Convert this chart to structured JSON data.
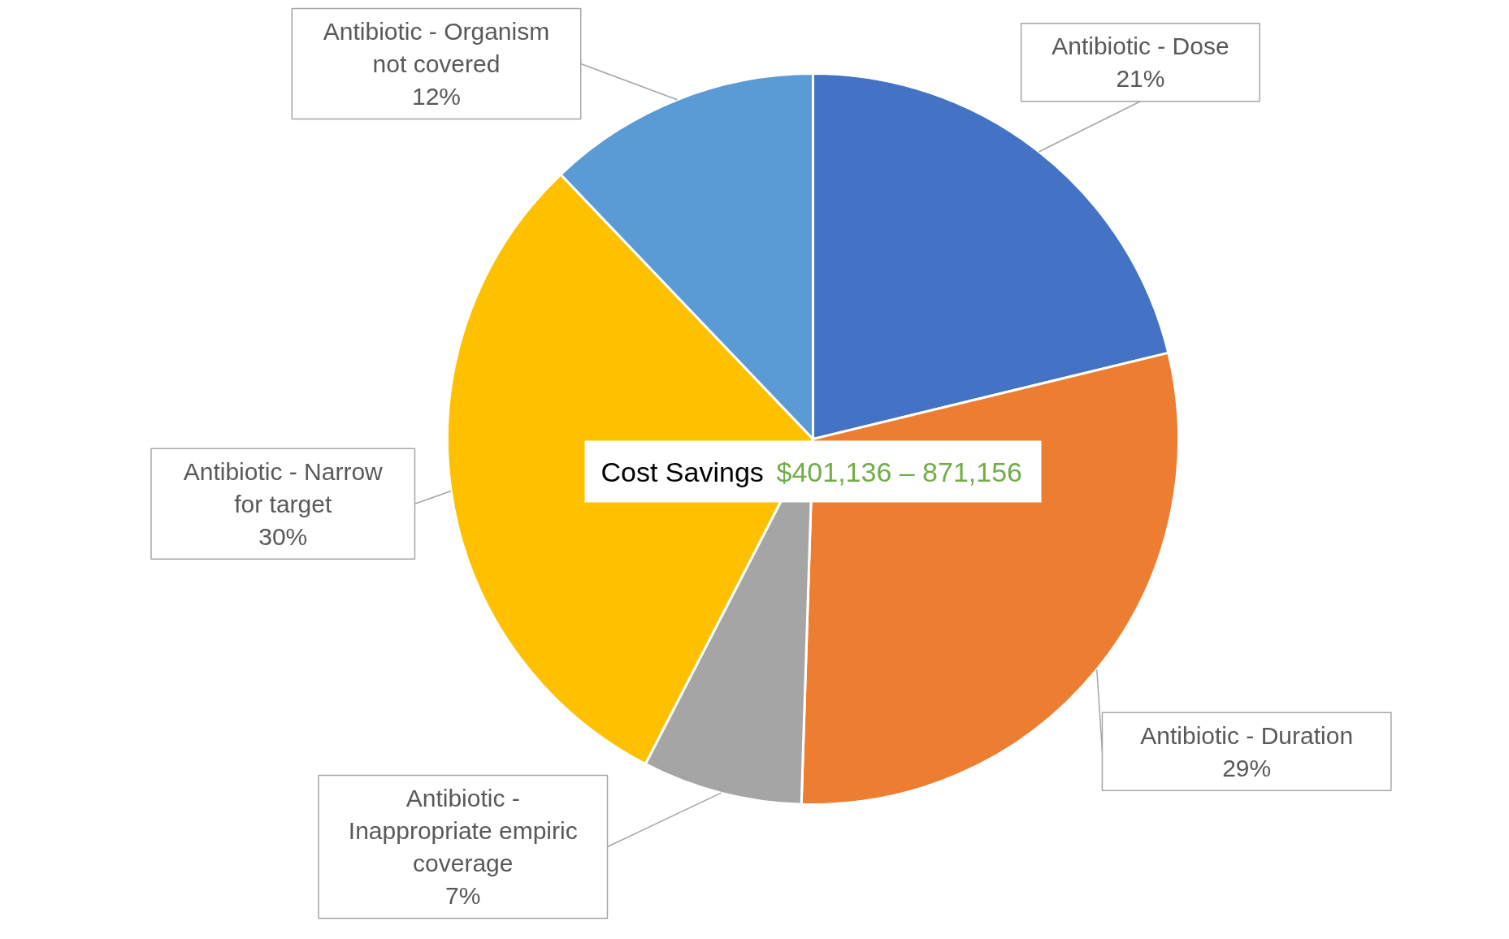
{
  "chart_data": {
    "type": "pie",
    "categories": [
      "Antibiotic - Dose",
      "Antibiotic - Duration",
      "Antibiotic - Inappropriate empiric coverage",
      "Antibiotic - Narrow for target",
      "Antibiotic - Organism not covered"
    ],
    "values": [
      21,
      29,
      7,
      30,
      12
    ],
    "colors": [
      "#4472c4",
      "#ed7d31",
      "#a5a5a5",
      "#ffc000",
      "#5b9bd5"
    ],
    "value_labels": [
      "21%",
      "29%",
      "7%",
      "30%",
      "12%"
    ],
    "annotations": [
      "Cost Savings",
      "$401,136 – 871,156"
    ]
  }
}
